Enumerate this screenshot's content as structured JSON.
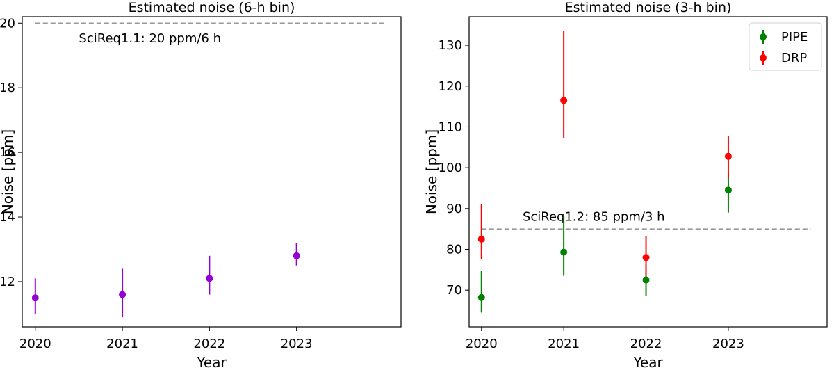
{
  "chart_data": [
    {
      "type": "scatter",
      "title": "Estimated noise (6-h bin)",
      "xlabel": "Year",
      "ylabel": "Noise [ppm]",
      "xlim": [
        2019.85,
        2024.2
      ],
      "ylim": [
        10.6,
        20.2
      ],
      "xticks": [
        2020,
        2021,
        2022,
        2023
      ],
      "yticks": [
        12,
        14,
        16,
        18,
        20
      ],
      "grid": false,
      "reference_line": {
        "y": 20,
        "x_range": [
          2020,
          2024
        ],
        "style": "dashed",
        "color": "#999999",
        "label": "SciReq1.1: 20 ppm/6 h",
        "label_anchor": [
          2020.5,
          19.4
        ]
      },
      "series": [
        {
          "color": "#9400d3",
          "points": [
            {
              "x": 2020,
              "y": 11.5,
              "ylow": 11.0,
              "yhigh": 12.1
            },
            {
              "x": 2021,
              "y": 11.6,
              "ylow": 10.9,
              "yhigh": 12.4
            },
            {
              "x": 2022,
              "y": 12.1,
              "ylow": 11.6,
              "yhigh": 12.8
            },
            {
              "x": 2023,
              "y": 12.8,
              "ylow": 12.5,
              "yhigh": 13.2
            }
          ]
        }
      ]
    },
    {
      "type": "scatter",
      "title": "Estimated noise (3-h bin)",
      "xlabel": "Year",
      "ylabel": "Noise [ppm]",
      "xlim": [
        2019.85,
        2024.2
      ],
      "ylim": [
        61,
        137
      ],
      "xticks": [
        2020,
        2021,
        2022,
        2023
      ],
      "yticks": [
        70,
        80,
        90,
        100,
        110,
        120,
        130
      ],
      "grid": false,
      "legend": "top-right",
      "reference_line": {
        "y": 85,
        "x_range": [
          2020,
          2024
        ],
        "style": "dashed",
        "color": "#999999",
        "label": "SciReq1.2: 85 ppm/3 h",
        "label_anchor": [
          2020.5,
          87
        ]
      },
      "series": [
        {
          "name": "PIPE",
          "color": "#008000",
          "points": [
            {
              "x": 2020,
              "y": 68.2,
              "ylow": 64.5,
              "yhigh": 74.8
            },
            {
              "x": 2021,
              "y": 79.3,
              "ylow": 73.5,
              "yhigh": 88.0
            },
            {
              "x": 2022,
              "y": 72.5,
              "ylow": 68.5,
              "yhigh": 76.5
            },
            {
              "x": 2023,
              "y": 94.5,
              "ylow": 89.0,
              "yhigh": 98.5
            }
          ]
        },
        {
          "name": "DRP",
          "color": "#ff0000",
          "points": [
            {
              "x": 2020,
              "y": 82.5,
              "ylow": 77.5,
              "yhigh": 91.0
            },
            {
              "x": 2021,
              "y": 116.5,
              "ylow": 107.3,
              "yhigh": 133.5
            },
            {
              "x": 2022,
              "y": 78.0,
              "ylow": 73.5,
              "yhigh": 83.2
            },
            {
              "x": 2023,
              "y": 102.8,
              "ylow": 97.5,
              "yhigh": 107.8
            }
          ]
        }
      ]
    }
  ]
}
